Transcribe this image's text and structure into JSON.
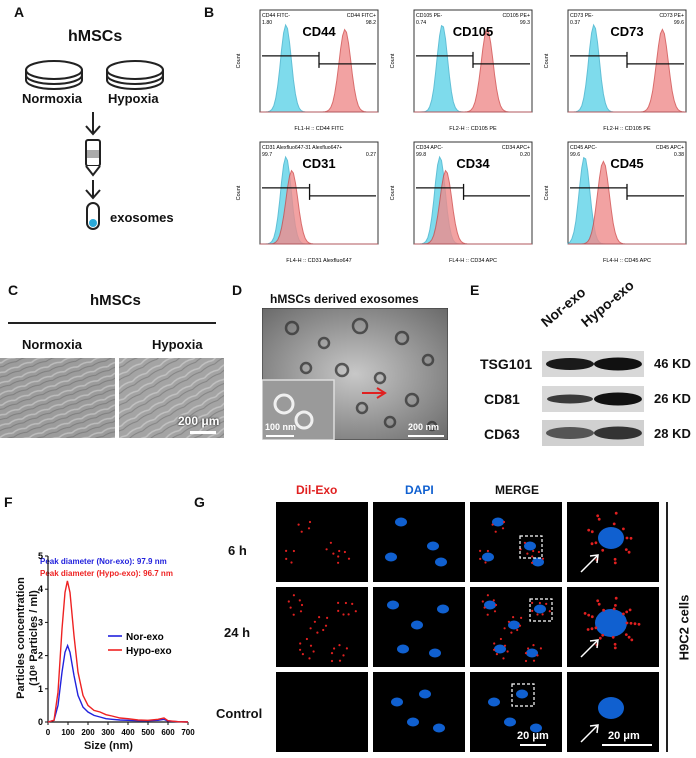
{
  "panels": {
    "a": "A",
    "b": "B",
    "c": "C",
    "d": "D",
    "e": "E",
    "f": "F",
    "g": "G"
  },
  "panel_a": {
    "title": "hMSCs",
    "normoxia": "Normoxia",
    "hypoxia": "Hypoxia",
    "exosomes": "exosomes"
  },
  "panel_b": {
    "count_label": "Count",
    "markers": [
      {
        "name": "CD44",
        "left_label": "CD44 FITC-",
        "left_val": "1.80",
        "right_label": "CD44 FITC+",
        "right_val": "98.2",
        "xlabel": "FL1-H :: CD44 FITC"
      },
      {
        "name": "CD105",
        "left_label": "CD105 PE-",
        "left_val": "0.74",
        "right_label": "CD105 PE+",
        "right_val": "99.3",
        "xlabel": "FL2-H :: CD105 PE"
      },
      {
        "name": "CD73",
        "left_label": "CD73 PE-",
        "left_val": "0.37",
        "right_label": "CD73 PE+",
        "right_val": "99.6",
        "xlabel": "FL2-H :: CD105 PE"
      },
      {
        "name": "CD31",
        "left_label": "CD31 Alexfluo647-31 Alexfluo647+",
        "left_val": "99.7",
        "right_label": "",
        "right_val": "0.27",
        "xlabel": "FL4-H :: CD31 Alexfluo647"
      },
      {
        "name": "CD34",
        "left_label": "CD34 APC-",
        "left_val": "99.8",
        "right_label": "CD34 APC+",
        "right_val": "0.20",
        "xlabel": "FL4-H :: CD34 APC"
      },
      {
        "name": "CD45",
        "left_label": "CD45 APC-",
        "left_val": "99.6",
        "right_label": "CD45 APC+",
        "right_val": "0.38",
        "xlabel": "FL4-H :: CD45 APC"
      }
    ]
  },
  "panel_c": {
    "title": "hMSCs",
    "normoxia": "Normoxia",
    "hypoxia": "Hypoxia",
    "scale": "200 μm"
  },
  "panel_d": {
    "title": "hMSCs derived exosomes",
    "inset_scale": "100 nm",
    "scale": "200 nm"
  },
  "panel_e": {
    "col1": "Nor-exo",
    "col2": "Hypo-exo",
    "rows": [
      {
        "name": "TSG101",
        "size": "46 KD"
      },
      {
        "name": "CD81",
        "size": "26 KD"
      },
      {
        "name": "CD63",
        "size": "28 KD"
      }
    ]
  },
  "panel_f": {
    "peak_nor": "Peak diameter (Nor-exo): 97.9 nm",
    "peak_hypo": "Peak diameter (Hypo-exo): 96.7 nm",
    "ylabel1": "Particles concentration",
    "ylabel2": "(10⁸ Particles / ml)",
    "xlabel": "Size (nm)",
    "legend_nor": "Nor-exo",
    "legend_hypo": "Hypo-exo",
    "color_nor": "#2222dd",
    "color_hypo": "#ee2222"
  },
  "chart_data": {
    "type": "line",
    "xlabel": "Size (nm)",
    "ylabel": "Particles concentration (10⁸ Particles / ml)",
    "xlim": [
      0,
      700
    ],
    "ylim": [
      0,
      5
    ],
    "xticks": [
      0,
      100,
      200,
      300,
      400,
      500,
      600,
      700
    ],
    "yticks": [
      0,
      1,
      2,
      3,
      4,
      5
    ],
    "series": [
      {
        "name": "Nor-exo",
        "color": "#2222dd",
        "x": [
          0,
          30,
          50,
          70,
          85,
          98,
          110,
          130,
          150,
          175,
          200,
          230,
          260,
          290,
          320,
          360,
          400,
          450,
          500,
          550,
          580,
          600,
          650,
          700
        ],
        "y": [
          0,
          0.05,
          0.5,
          1.5,
          2.1,
          2.3,
          2.1,
          1.4,
          0.8,
          0.45,
          0.3,
          0.2,
          0.15,
          0.1,
          0.08,
          0.06,
          0.05,
          0.04,
          0.04,
          0.05,
          0.08,
          0.03,
          0.01,
          0
        ]
      },
      {
        "name": "Hypo-exo",
        "color": "#ee2222",
        "x": [
          0,
          30,
          50,
          70,
          85,
          97,
          110,
          130,
          150,
          175,
          200,
          230,
          260,
          290,
          320,
          360,
          400,
          450,
          500,
          550,
          580,
          600,
          650,
          700
        ],
        "y": [
          0,
          0.05,
          0.9,
          2.8,
          3.9,
          4.25,
          3.9,
          2.6,
          1.5,
          0.8,
          0.5,
          0.35,
          0.3,
          0.22,
          0.18,
          0.12,
          0.1,
          0.06,
          0.05,
          0.08,
          0.12,
          0.04,
          0.01,
          0
        ]
      }
    ]
  },
  "panel_g": {
    "col_dil": "Dil-Exo",
    "col_dapi": "DAPI",
    "col_merge": "MERGE",
    "rows": [
      "6 h",
      "24 h",
      "Control"
    ],
    "side": "H9C2 cells",
    "scale1": "20 μm",
    "scale2": "20 μm",
    "color_dil": "#e02020",
    "color_dapi": "#1060d0"
  }
}
